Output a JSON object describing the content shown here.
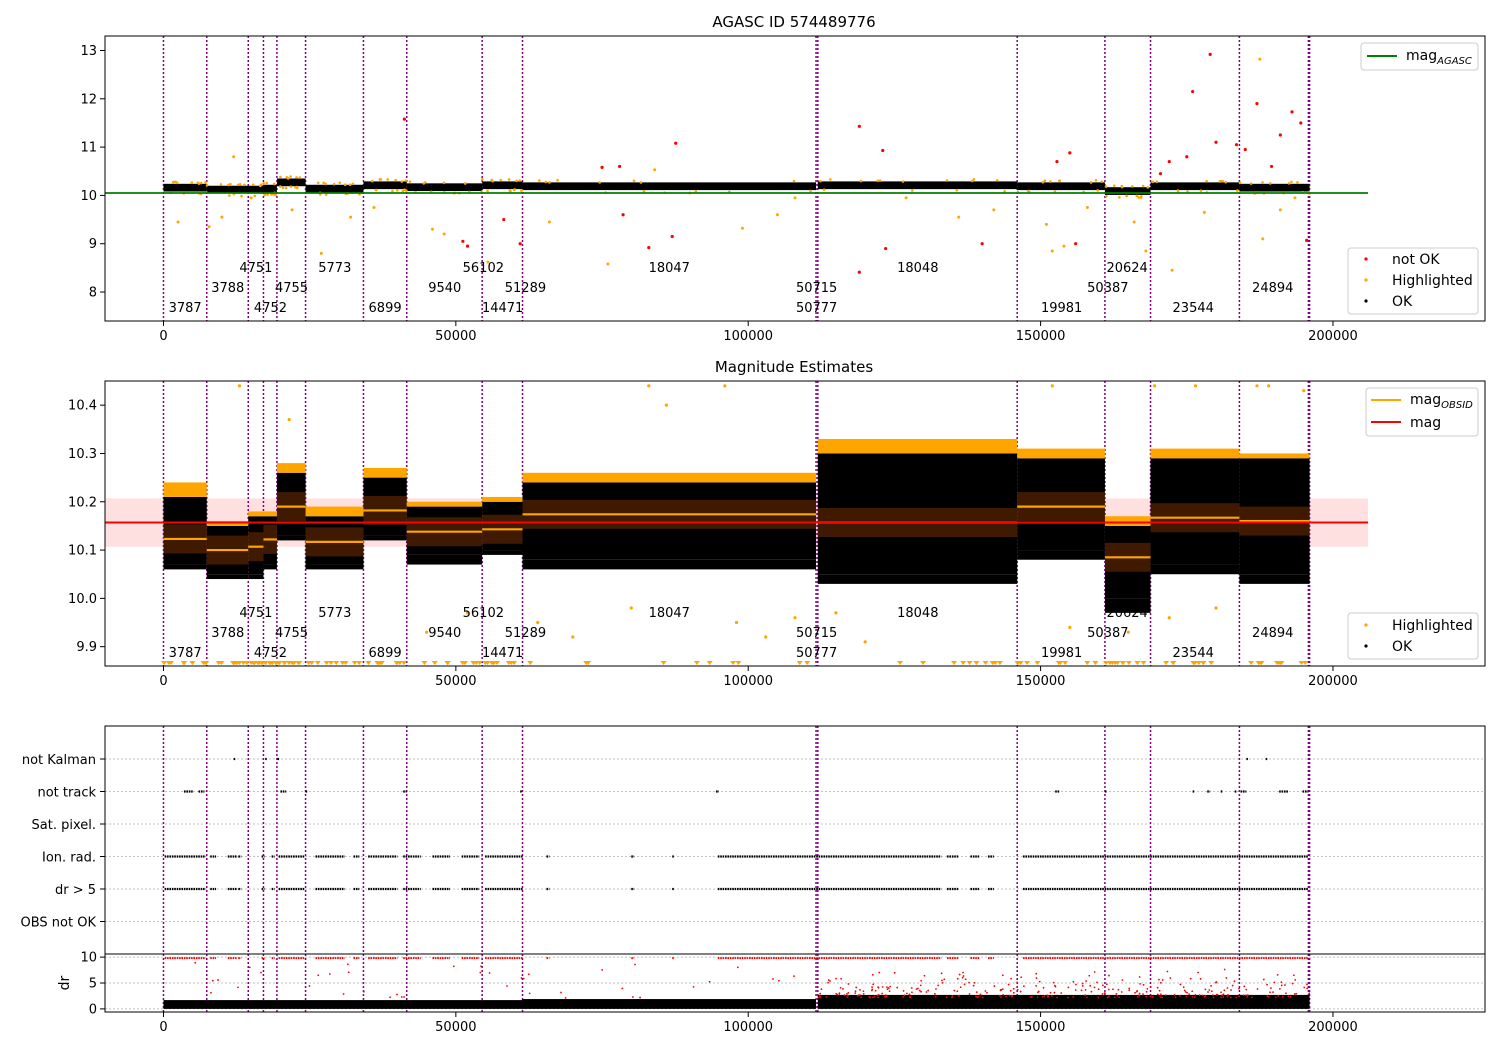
{
  "figure": {
    "title_top": "AGASC ID 574489776",
    "title_mid": "Magnitude Estimates",
    "xticks": [
      0,
      50000,
      100000,
      150000,
      200000
    ],
    "xlim": [
      -10000,
      226000
    ],
    "obs_boundaries": [
      0,
      7400,
      14500,
      17100,
      19400,
      24300,
      34200,
      41600,
      54500,
      61400,
      111600,
      111900,
      146000,
      161000,
      168800,
      184000,
      195800,
      196000
    ],
    "obsids": [
      {
        "label": "3787",
        "x": 3700,
        "row": 3
      },
      {
        "label": "3788",
        "x": 11000,
        "row": 2
      },
      {
        "label": "4751",
        "x": 15800,
        "row": 1
      },
      {
        "label": "4752",
        "x": 18300,
        "row": 3
      },
      {
        "label": "4755",
        "x": 21900,
        "row": 2
      },
      {
        "label": "5773",
        "x": 29300,
        "row": 1
      },
      {
        "label": "6899",
        "x": 37900,
        "row": 3
      },
      {
        "label": "9540",
        "x": 48100,
        "row": 2
      },
      {
        "label": "56102",
        "x": 54700,
        "row": 1
      },
      {
        "label": "14471",
        "x": 58000,
        "row": 3
      },
      {
        "label": "51289",
        "x": 61900,
        "row": 2
      },
      {
        "label": "18047",
        "x": 86500,
        "row": 1
      },
      {
        "label": "50715",
        "x": 111700,
        "row": 2
      },
      {
        "label": "50777",
        "x": 111700,
        "row": 3
      },
      {
        "label": "18048",
        "x": 129000,
        "row": 1
      },
      {
        "label": "19981",
        "x": 153600,
        "row": 3
      },
      {
        "label": "50387",
        "x": 161500,
        "row": 2
      },
      {
        "label": "20624",
        "x": 164800,
        "row": 1
      },
      {
        "label": "23544",
        "x": 176100,
        "row": 3
      },
      {
        "label": "24894",
        "x": 189700,
        "row": 2
      }
    ]
  },
  "chart_data": [
    {
      "type": "scatter",
      "title": "AGASC ID 574489776",
      "ylim": [
        7.4,
        13.3
      ],
      "yticks": [
        8,
        9,
        10,
        11,
        12,
        13
      ],
      "mag_agasc": 10.05,
      "agasc_line_range": [
        -10000,
        206000
      ],
      "segments": [
        {
          "x0": 0,
          "x1": 7400,
          "level": 10.17
        },
        {
          "x0": 7400,
          "x1": 17100,
          "level": 10.13
        },
        {
          "x0": 17100,
          "x1": 19400,
          "level": 10.15
        },
        {
          "x0": 19400,
          "x1": 24300,
          "level": 10.28
        },
        {
          "x0": 24300,
          "x1": 34200,
          "level": 10.15
        },
        {
          "x0": 34200,
          "x1": 41600,
          "level": 10.22
        },
        {
          "x0": 41600,
          "x1": 54500,
          "level": 10.18
        },
        {
          "x0": 54500,
          "x1": 61400,
          "level": 10.22
        },
        {
          "x0": 61400,
          "x1": 111600,
          "level": 10.2
        },
        {
          "x0": 111900,
          "x1": 146000,
          "level": 10.22
        },
        {
          "x0": 146000,
          "x1": 161000,
          "level": 10.2
        },
        {
          "x0": 161000,
          "x1": 168800,
          "level": 10.1
        },
        {
          "x0": 168800,
          "x1": 184000,
          "level": 10.2
        },
        {
          "x0": 184000,
          "x1": 196000,
          "level": 10.17
        }
      ],
      "not_ok_points": [
        [
          41200,
          11.58
        ],
        [
          51200,
          9.05
        ],
        [
          52000,
          8.95
        ],
        [
          58200,
          9.5
        ],
        [
          61000,
          9.0
        ],
        [
          75000,
          10.58
        ],
        [
          78000,
          10.6
        ],
        [
          78600,
          9.6
        ],
        [
          83000,
          8.92
        ],
        [
          87000,
          9.15
        ],
        [
          87600,
          11.08
        ],
        [
          119000,
          11.43
        ],
        [
          123000,
          10.93
        ],
        [
          119000,
          8.41
        ],
        [
          123500,
          8.9
        ],
        [
          140000,
          9.0
        ],
        [
          152800,
          10.7
        ],
        [
          155000,
          10.88
        ],
        [
          156000,
          9.0
        ],
        [
          170500,
          10.45
        ],
        [
          172000,
          10.7
        ],
        [
          175000,
          10.8
        ],
        [
          176000,
          12.15
        ],
        [
          179000,
          12.92
        ],
        [
          180000,
          11.1
        ],
        [
          183500,
          11.05
        ],
        [
          185000,
          10.95
        ],
        [
          187000,
          11.9
        ],
        [
          189500,
          10.6
        ],
        [
          191000,
          11.25
        ],
        [
          193000,
          11.73
        ],
        [
          194500,
          11.5
        ],
        [
          195500,
          9.07
        ]
      ],
      "highlighted_points": [
        [
          12000,
          10.8
        ],
        [
          2500,
          9.45
        ],
        [
          7800,
          9.35
        ],
        [
          10000,
          9.55
        ],
        [
          15000,
          9.95
        ],
        [
          22000,
          9.7
        ],
        [
          27000,
          8.8
        ],
        [
          32000,
          9.55
        ],
        [
          36000,
          9.75
        ],
        [
          46000,
          9.3
        ],
        [
          48000,
          9.2
        ],
        [
          55500,
          8.62
        ],
        [
          66000,
          9.45
        ],
        [
          76000,
          8.58
        ],
        [
          84000,
          10.53
        ],
        [
          90000,
          10.05
        ],
        [
          99000,
          9.32
        ],
        [
          105000,
          9.6
        ],
        [
          108000,
          9.95
        ],
        [
          127000,
          9.95
        ],
        [
          136000,
          9.55
        ],
        [
          142000,
          9.7
        ],
        [
          151000,
          9.4
        ],
        [
          152000,
          8.85
        ],
        [
          154000,
          8.95
        ],
        [
          158000,
          9.75
        ],
        [
          166000,
          9.45
        ],
        [
          168000,
          8.85
        ],
        [
          172500,
          8.45
        ],
        [
          178000,
          9.65
        ],
        [
          187500,
          12.82
        ],
        [
          188000,
          9.1
        ],
        [
          191000,
          9.7
        ],
        [
          193500,
          9.95
        ]
      ],
      "legend_line": "mag",
      "legend_line_sub": "AGASC",
      "legend_points": [
        "not OK",
        "Highlighted",
        "OK"
      ]
    },
    {
      "type": "scatter",
      "title": "Magnitude Estimates",
      "ylim": [
        9.86,
        10.45
      ],
      "yticks": [
        9.9,
        10.0,
        10.1,
        10.2,
        10.3,
        10.4
      ],
      "mag": 10.157,
      "mag_band": [
        10.107,
        10.207
      ],
      "mag_line_range": [
        -10000,
        206000
      ],
      "segments": [
        {
          "x0": 0,
          "x1": 7400,
          "mean": 10.123,
          "lo": 10.07,
          "hi": 10.21,
          "ext_lo": 10.06,
          "ext_hi": 10.24
        },
        {
          "x0": 7400,
          "x1": 14500,
          "mean": 10.1,
          "lo": 10.05,
          "hi": 10.15,
          "ext_lo": 10.04,
          "ext_hi": 10.16
        },
        {
          "x0": 14500,
          "x1": 17100,
          "mean": 10.107,
          "lo": 10.05,
          "hi": 10.17,
          "ext_lo": 10.04,
          "ext_hi": 10.18
        },
        {
          "x0": 17100,
          "x1": 19400,
          "mean": 10.122,
          "lo": 10.07,
          "hi": 10.17,
          "ext_lo": 10.06,
          "ext_hi": 10.18
        },
        {
          "x0": 19400,
          "x1": 24300,
          "mean": 10.19,
          "lo": 10.13,
          "hi": 10.26,
          "ext_lo": 10.12,
          "ext_hi": 10.28
        },
        {
          "x0": 24300,
          "x1": 34200,
          "mean": 10.117,
          "lo": 10.07,
          "hi": 10.17,
          "ext_lo": 10.06,
          "ext_hi": 10.19
        },
        {
          "x0": 34200,
          "x1": 41600,
          "mean": 10.182,
          "lo": 10.13,
          "hi": 10.25,
          "ext_lo": 10.12,
          "ext_hi": 10.27
        },
        {
          "x0": 41600,
          "x1": 54500,
          "mean": 10.138,
          "lo": 10.09,
          "hi": 10.19,
          "ext_lo": 10.07,
          "ext_hi": 10.2
        },
        {
          "x0": 54500,
          "x1": 61400,
          "mean": 10.143,
          "lo": 10.1,
          "hi": 10.2,
          "ext_lo": 10.09,
          "ext_hi": 10.21
        },
        {
          "x0": 61400,
          "x1": 111600,
          "mean": 10.174,
          "lo": 10.08,
          "hi": 10.24,
          "ext_lo": 10.06,
          "ext_hi": 10.26
        },
        {
          "x0": 111900,
          "x1": 146000,
          "mean": 10.157,
          "lo": 10.05,
          "hi": 10.3,
          "ext_lo": 10.03,
          "ext_hi": 10.33
        },
        {
          "x0": 146000,
          "x1": 161000,
          "mean": 10.19,
          "lo": 10.1,
          "hi": 10.29,
          "ext_lo": 10.08,
          "ext_hi": 10.31
        },
        {
          "x0": 161000,
          "x1": 168800,
          "mean": 10.085,
          "lo": 10.0,
          "hi": 10.15,
          "ext_lo": 9.97,
          "ext_hi": 10.17
        },
        {
          "x0": 168800,
          "x1": 184000,
          "mean": 10.167,
          "lo": 10.07,
          "hi": 10.29,
          "ext_lo": 10.05,
          "ext_hi": 10.31
        },
        {
          "x0": 184000,
          "x1": 196000,
          "mean": 10.16,
          "lo": 10.05,
          "hi": 10.29,
          "ext_lo": 10.03,
          "ext_hi": 10.3
        }
      ],
      "highlighted_points": [
        [
          13000,
          10.44
        ],
        [
          21500,
          10.37
        ],
        [
          86000,
          10.4
        ],
        [
          83000,
          10.44
        ],
        [
          96000,
          10.44
        ],
        [
          152000,
          10.44
        ],
        [
          169500,
          10.44
        ],
        [
          176500,
          10.44
        ],
        [
          187000,
          10.44
        ],
        [
          189000,
          10.44
        ],
        [
          195000,
          10.43
        ],
        [
          45000,
          9.93
        ],
        [
          52000,
          9.97
        ],
        [
          64000,
          9.95
        ],
        [
          70000,
          9.92
        ],
        [
          80000,
          9.98
        ],
        [
          98000,
          9.95
        ],
        [
          103000,
          9.92
        ],
        [
          108000,
          9.96
        ],
        [
          115000,
          9.97
        ],
        [
          120000,
          9.91
        ],
        [
          155000,
          9.94
        ],
        [
          165000,
          9.93
        ],
        [
          172000,
          9.96
        ],
        [
          180000,
          9.98
        ]
      ],
      "legend_lines": [
        {
          "label": "mag",
          "sub": "OBSID"
        },
        {
          "label": "mag",
          "sub": ""
        }
      ],
      "legend_points": [
        "Highlighted",
        "OK"
      ]
    },
    {
      "type": "scatter",
      "title": "",
      "categories": [
        "not Kalman",
        "not track",
        "Sat. pixel.",
        "Ion. rad.",
        "dr > 5",
        "OBS not OK"
      ],
      "flag_ranges": {
        "not Kalman": [
          [
            12000,
            12400
          ],
          [
            17400,
            17600
          ],
          [
            19500,
            19800
          ],
          [
            185200,
            185400
          ],
          [
            188500,
            188700
          ]
        ],
        "not track": [
          [
            3500,
            5000
          ],
          [
            6000,
            7000
          ],
          [
            20000,
            21000
          ],
          [
            24300,
            24600
          ],
          [
            41000,
            41600
          ],
          [
            61000,
            61400
          ],
          [
            94500,
            95000
          ],
          [
            152500,
            153200
          ],
          [
            161000,
            161400
          ],
          [
            176000,
            176300
          ],
          [
            178500,
            179000
          ],
          [
            180800,
            181200
          ],
          [
            183200,
            183600
          ],
          [
            184200,
            185200
          ],
          [
            190800,
            192300
          ],
          [
            194800,
            195800
          ]
        ],
        "Ion. rad.": [
          [
            200,
            7200
          ],
          [
            8000,
            9000
          ],
          [
            11000,
            12500
          ],
          [
            12800,
            13300
          ],
          [
            16800,
            17300
          ],
          [
            18500,
            19000
          ],
          [
            19700,
            24200
          ],
          [
            26000,
            31000
          ],
          [
            32500,
            33500
          ],
          [
            35000,
            40000
          ],
          [
            41000,
            44000
          ],
          [
            46000,
            49000
          ],
          [
            51000,
            54000
          ],
          [
            55000,
            61400
          ],
          [
            65500,
            66000
          ],
          [
            80000,
            80500
          ],
          [
            87000,
            87400
          ],
          [
            94800,
            133000
          ],
          [
            134000,
            136000
          ],
          [
            138000,
            139500
          ],
          [
            141000,
            142000
          ],
          [
            147000,
            195800
          ]
        ],
        "dr > 5": [
          [
            200,
            7200
          ],
          [
            8000,
            9000
          ],
          [
            11000,
            12500
          ],
          [
            12800,
            13300
          ],
          [
            16800,
            17300
          ],
          [
            18500,
            19000
          ],
          [
            19700,
            24200
          ],
          [
            26000,
            31000
          ],
          [
            32500,
            33500
          ],
          [
            35000,
            40000
          ],
          [
            41000,
            44000
          ],
          [
            46000,
            49000
          ],
          [
            51000,
            54000
          ],
          [
            55000,
            61400
          ],
          [
            65500,
            66000
          ],
          [
            80000,
            80500
          ],
          [
            87000,
            87400
          ],
          [
            94800,
            133000
          ],
          [
            134000,
            136000
          ],
          [
            138000,
            139500
          ],
          [
            141000,
            142000
          ],
          [
            147000,
            195800
          ]
        ]
      }
    },
    {
      "type": "scatter",
      "title": "",
      "ylabel": "dr",
      "ylim": [
        -0.6,
        10.6
      ],
      "yticks": [
        0,
        5,
        10
      ],
      "segments": [
        {
          "x0": 0,
          "x1": 61400,
          "base": 0.8
        },
        {
          "x0": 61400,
          "x1": 111600,
          "base": 1.0
        },
        {
          "x0": 111900,
          "x1": 196000,
          "base": 1.8
        }
      ]
    }
  ]
}
